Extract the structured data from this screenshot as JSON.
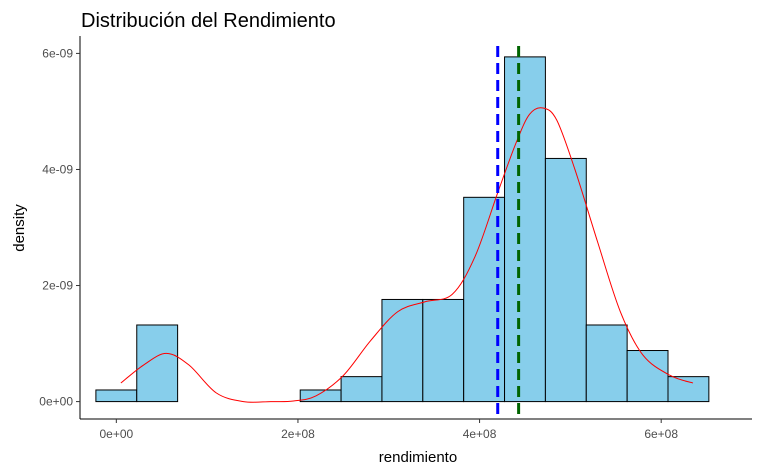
{
  "chart_data": {
    "type": "histogram",
    "title": "Distribución del Rendimiento",
    "xlabel": "rendimiento",
    "ylabel": "density",
    "xlim": [
      -40000000,
      700000000
    ],
    "ylim": [
      -3e-10,
      6.3e-09
    ],
    "x_ticks": [
      {
        "value": 0,
        "label": "0e+00"
      },
      {
        "value": 200000000,
        "label": "2e+08"
      },
      {
        "value": 400000000,
        "label": "4e+08"
      },
      {
        "value": 600000000,
        "label": "6e+08"
      }
    ],
    "y_ticks": [
      {
        "value": 0,
        "label": "0e+00"
      },
      {
        "value": 2e-09,
        "label": "2e-09"
      },
      {
        "value": 4e-09,
        "label": "4e-09"
      },
      {
        "value": 6e-09,
        "label": "6e-09"
      }
    ],
    "bins": [
      {
        "x0": -22500000,
        "x1": 22500000,
        "density": 2e-10
      },
      {
        "x0": 22500000,
        "x1": 67500000,
        "density": 1.32e-09
      },
      {
        "x0": 67500000,
        "x1": 112500000,
        "density": 0
      },
      {
        "x0": 112500000,
        "x1": 157500000,
        "density": 0
      },
      {
        "x0": 157500000,
        "x1": 202500000,
        "density": 0
      },
      {
        "x0": 202500000,
        "x1": 247500000,
        "density": 2e-10
      },
      {
        "x0": 247500000,
        "x1": 292500000,
        "density": 4.3e-10
      },
      {
        "x0": 292500000,
        "x1": 337500000,
        "density": 1.76e-09
      },
      {
        "x0": 337500000,
        "x1": 382500000,
        "density": 1.76e-09
      },
      {
        "x0": 382500000,
        "x1": 427500000,
        "density": 3.52e-09
      },
      {
        "x0": 427500000,
        "x1": 472500000,
        "density": 5.94e-09
      },
      {
        "x0": 472500000,
        "x1": 517500000,
        "density": 4.19e-09
      },
      {
        "x0": 517500000,
        "x1": 562500000,
        "density": 1.32e-09
      },
      {
        "x0": 562500000,
        "x1": 607500000,
        "density": 8.8e-10
      },
      {
        "x0": 607500000,
        "x1": 652500000,
        "density": 4.3e-10
      }
    ],
    "density_curve": {
      "x": [
        5000000,
        30000000,
        55000000,
        80000000,
        110000000,
        140000000,
        170000000,
        195000000,
        220000000,
        250000000,
        280000000,
        310000000,
        340000000,
        370000000,
        395000000,
        420000000,
        440000000,
        455000000,
        470000000,
        485000000,
        505000000,
        530000000,
        555000000,
        580000000,
        610000000,
        635000000
      ],
      "y": [
        3.2e-10,
        6.3e-10,
        8.3e-10,
        6.3e-10,
        1.5e-10,
        0,
        0,
        1e-11,
        1e-10,
        4.5e-10,
        1.05e-09,
        1.55e-09,
        1.72e-09,
        1.85e-09,
        2.5e-09,
        3.6e-09,
        4.45e-09,
        4.95e-09,
        5.06e-09,
        4.85e-09,
        4e-09,
        2.75e-09,
        1.55e-09,
        8e-10,
        4.5e-10,
        3.2e-10
      ],
      "color": "#ff0000"
    },
    "vlines": [
      {
        "x": 420000000,
        "color": "#0000ff",
        "style": "dashed"
      },
      {
        "x": 443000000,
        "color": "#006400",
        "style": "dashed"
      }
    ],
    "bar_fill": "#87ceeb",
    "bar_stroke": "#000000",
    "grid": false
  }
}
